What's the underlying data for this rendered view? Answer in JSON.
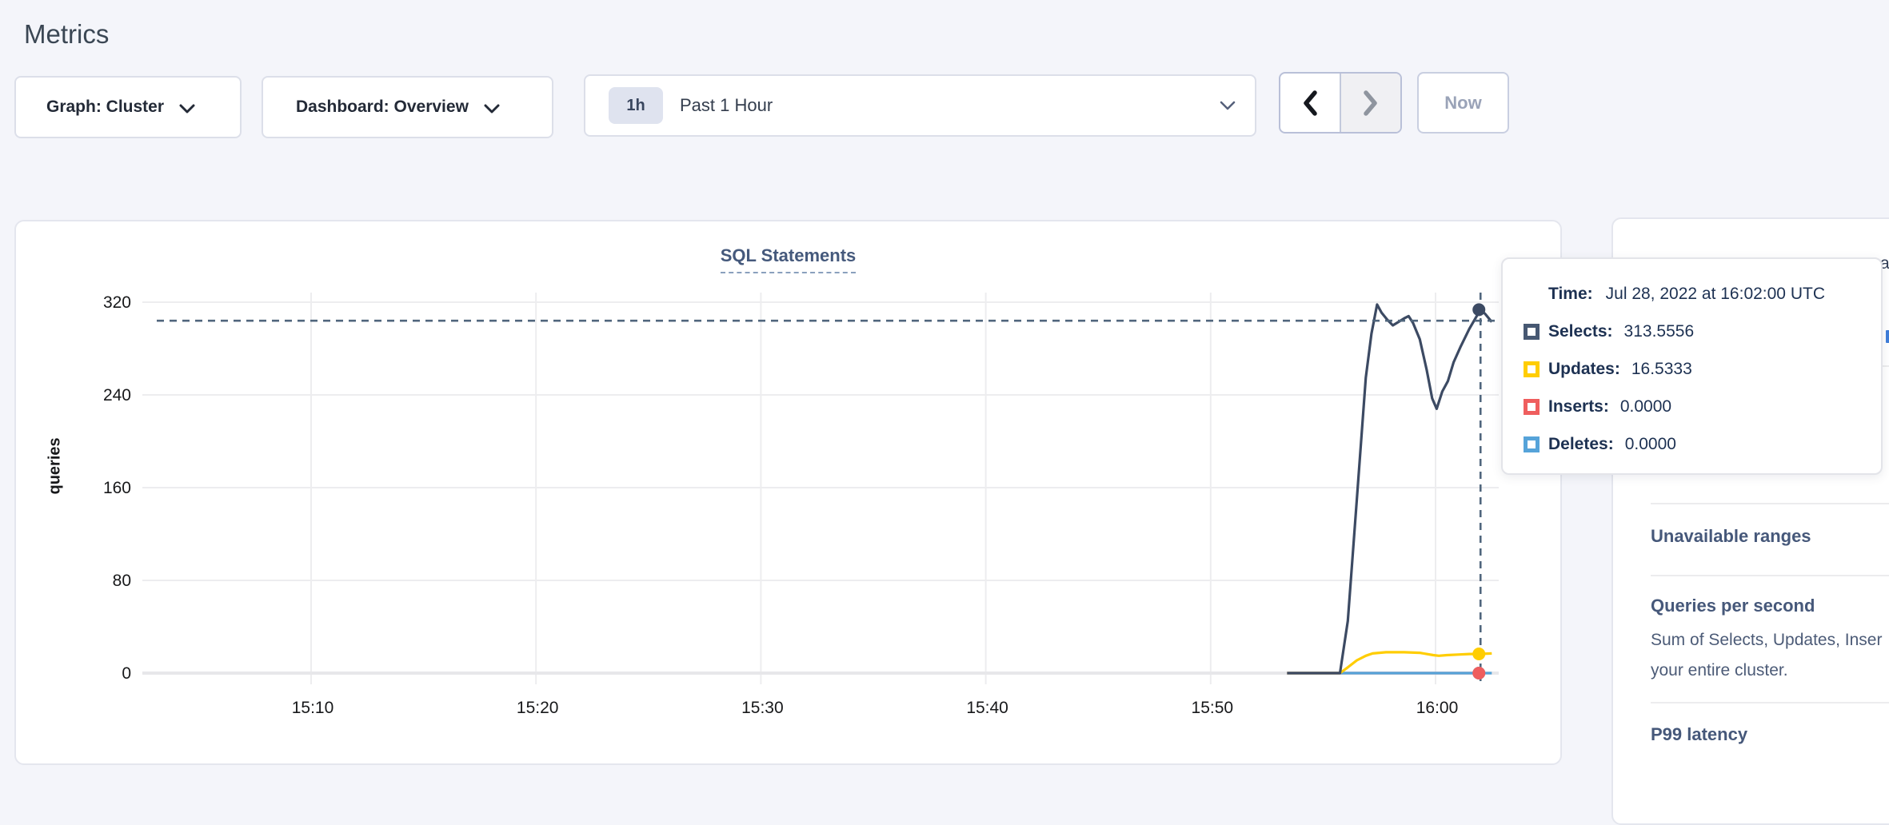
{
  "page": {
    "title": "Metrics",
    "background": "#f4f5fa"
  },
  "toolbar": {
    "graph_dropdown_label": "Graph: Cluster",
    "dashboard_dropdown_label": "Dashboard: Overview",
    "time_window": {
      "badge": "1h",
      "label": "Past 1 Hour"
    },
    "now_button_label": "Now"
  },
  "chart": {
    "title": "SQL Statements",
    "ylabel": "queries"
  },
  "chart_data": {
    "type": "line",
    "title": "SQL Statements",
    "ylabel": "queries",
    "ylim": [
      0,
      320
    ],
    "y_ticks": [
      0,
      80,
      160,
      240,
      320
    ],
    "x_ticks": [
      {
        "t": 10,
        "label": "15:10"
      },
      {
        "t": 20,
        "label": "15:20"
      },
      {
        "t": 30,
        "label": "15:30"
      },
      {
        "t": 40,
        "label": "15:40"
      },
      {
        "t": 50,
        "label": "15:50"
      },
      {
        "t": 60,
        "label": "16:00"
      }
    ],
    "x_unit": "minutes after 15:00",
    "grid": true,
    "series": [
      {
        "name": "Inserts",
        "color": "#ef5e5e",
        "points": [
          [
            53.4,
            0
          ],
          [
            62.0,
            0
          ]
        ]
      },
      {
        "name": "Deletes",
        "color": "#56a3d9",
        "points": [
          [
            53.4,
            0
          ],
          [
            62.5,
            0
          ]
        ]
      },
      {
        "name": "Updates",
        "color": "#ffcd02",
        "points": [
          [
            53.4,
            0
          ],
          [
            55.75,
            0
          ],
          [
            56.1,
            5
          ],
          [
            56.5,
            11
          ],
          [
            56.9,
            15
          ],
          [
            57.2,
            17
          ],
          [
            57.8,
            18
          ],
          [
            58.6,
            18
          ],
          [
            59.3,
            17.5
          ],
          [
            59.9,
            15.5
          ],
          [
            60.15,
            15
          ],
          [
            60.5,
            15.5
          ],
          [
            61.0,
            16
          ],
          [
            61.5,
            16.5
          ],
          [
            62.0,
            16.5333
          ],
          [
            62.5,
            17
          ]
        ]
      },
      {
        "name": "Selects",
        "color": "#3c4a63",
        "points": [
          [
            53.4,
            0
          ],
          [
            55.75,
            0
          ],
          [
            56.1,
            45
          ],
          [
            56.5,
            150
          ],
          [
            56.9,
            255
          ],
          [
            57.15,
            293
          ],
          [
            57.4,
            318
          ],
          [
            57.6,
            311
          ],
          [
            57.85,
            305
          ],
          [
            58.1,
            300
          ],
          [
            58.35,
            303
          ],
          [
            58.6,
            306
          ],
          [
            58.8,
            308
          ],
          [
            59.0,
            302
          ],
          [
            59.3,
            288
          ],
          [
            59.6,
            262
          ],
          [
            59.85,
            237
          ],
          [
            60.05,
            228
          ],
          [
            60.3,
            243
          ],
          [
            60.55,
            252
          ],
          [
            60.8,
            268
          ],
          [
            61.1,
            281
          ],
          [
            61.5,
            297
          ],
          [
            61.8,
            307
          ],
          [
            62.0,
            313.5556
          ],
          [
            62.2,
            310
          ],
          [
            62.5,
            303
          ]
        ]
      }
    ],
    "hover": {
      "t": 62,
      "crosshair_value": 304,
      "dots": [
        {
          "series": "Selects",
          "value": 313.5556,
          "color": "#3c4a63"
        },
        {
          "series": "Updates",
          "value": 16.5333,
          "color": "#ffcd02"
        },
        {
          "series": "Inserts",
          "value": 0.0,
          "color": "#ef5e5e"
        },
        {
          "series": "Deletes",
          "value": 0.0,
          "color": "#56a3d9"
        }
      ]
    },
    "colors": {
      "crosshair": "#50667d",
      "grid": "#ededef",
      "axis_zero": "#e7e7ea"
    }
  },
  "tooltip": {
    "time_label": "Time:",
    "time_value": "Jul 28, 2022 at 16:02:00 UTC",
    "rows": [
      {
        "label": "Selects:",
        "value": "313.5556",
        "color": "#475872"
      },
      {
        "label": "Updates:",
        "value": "16.5333",
        "color": "#ffcd02"
      },
      {
        "label": "Inserts:",
        "value": "0.0000",
        "color": "#ef5e5e"
      },
      {
        "label": "Deletes:",
        "value": "0.0000",
        "color": "#56a3d9"
      }
    ]
  },
  "sidebar": {
    "top_fragment": "a",
    "items": [
      {
        "heading": "Unavailable ranges",
        "desc_lines": []
      },
      {
        "heading": "Queries per second",
        "desc_lines": [
          "Sum of Selects, Updates, Inser",
          "your entire cluster."
        ]
      },
      {
        "heading": "P99 latency",
        "desc_lines": []
      }
    ]
  }
}
